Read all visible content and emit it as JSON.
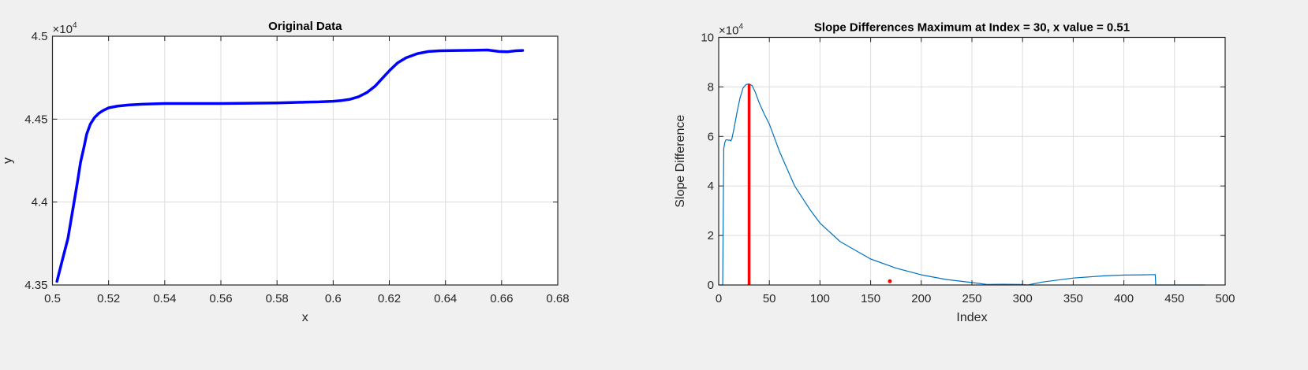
{
  "figure": {
    "background": "#f0f0f0"
  },
  "chart_data": [
    {
      "type": "line",
      "title": "Original Data",
      "xlabel": "x",
      "ylabel": "y",
      "xlim": [
        0.5,
        0.68
      ],
      "ylim": [
        4.35,
        4.5
      ],
      "y_exponent_label": "×10",
      "y_exponent": "4",
      "grid": true,
      "xticks": [
        0.5,
        0.52,
        0.54,
        0.56,
        0.58,
        0.6,
        0.62,
        0.64,
        0.66,
        0.68
      ],
      "xtick_labels": [
        "0.5",
        "0.52",
        "0.54",
        "0.56",
        "0.58",
        "0.6",
        "0.62",
        "0.64",
        "0.66",
        "0.68"
      ],
      "yticks": [
        4.35,
        4.4,
        4.45,
        4.5
      ],
      "ytick_labels": [
        "4.35",
        "4.4",
        "4.45",
        "4.5"
      ],
      "series": [
        {
          "name": "data",
          "color": "#0000ff",
          "line_width": 3.5,
          "x": [
            0.5016,
            0.5035,
            0.5055,
            0.5066,
            0.5077,
            0.509,
            0.51,
            0.5112,
            0.5122,
            0.5135,
            0.515,
            0.5165,
            0.518,
            0.52,
            0.523,
            0.527,
            0.532,
            0.54,
            0.55,
            0.56,
            0.57,
            0.58,
            0.59,
            0.595,
            0.6,
            0.603,
            0.606,
            0.609,
            0.612,
            0.615,
            0.618,
            0.6205,
            0.623,
            0.626,
            0.63,
            0.634,
            0.638,
            0.642,
            0.65,
            0.655,
            0.659,
            0.662,
            0.665,
            0.6675
          ],
          "y": [
            4.3522,
            4.365,
            4.378,
            4.389,
            4.4,
            4.413,
            4.424,
            4.433,
            4.441,
            4.447,
            4.451,
            4.4535,
            4.4552,
            4.4568,
            4.4578,
            4.4585,
            4.459,
            4.4594,
            4.4594,
            4.4594,
            4.4596,
            4.4598,
            4.4602,
            4.4604,
            4.4608,
            4.4612,
            4.462,
            4.4635,
            4.466,
            4.47,
            4.4755,
            4.48,
            4.484,
            4.487,
            4.4895,
            4.4908,
            4.4912,
            4.4913,
            4.4915,
            4.4917,
            4.4908,
            4.4906,
            4.4912,
            4.4914
          ]
        }
      ]
    },
    {
      "type": "line",
      "title": "Slope Differences Maximum at Index = 30, x value = 0.51",
      "xlabel": "Index",
      "ylabel": "Slope Difference",
      "xlim": [
        0,
        500
      ],
      "ylim": [
        0,
        10
      ],
      "y_exponent_label": "×10",
      "y_exponent": "4",
      "grid": true,
      "xticks": [
        0,
        50,
        100,
        150,
        200,
        250,
        300,
        350,
        400,
        450,
        500
      ],
      "xtick_labels": [
        "0",
        "50",
        "100",
        "150",
        "200",
        "250",
        "300",
        "350",
        "400",
        "450",
        "500"
      ],
      "yticks": [
        0,
        2,
        4,
        6,
        8,
        10
      ],
      "ytick_labels": [
        "0",
        "2",
        "4",
        "6",
        "8",
        "10"
      ],
      "series": [
        {
          "name": "slope differences",
          "color": "#0072bd",
          "line_width": 1.2,
          "x": [
            1,
            4,
            4.5,
            5,
            6,
            7,
            8,
            9,
            11,
            12,
            13,
            15,
            18,
            21,
            24,
            27,
            30,
            33,
            36,
            40,
            45,
            50,
            60,
            75,
            90,
            100,
            120,
            150,
            175,
            200,
            225,
            250,
            265,
            280,
            300,
            305,
            320,
            350,
            380,
            400,
            420,
            431,
            431.5,
            450,
            480
          ],
          "y": [
            0,
            0,
            3.0,
            5.5,
            5.75,
            5.85,
            5.87,
            5.85,
            5.85,
            5.82,
            5.9,
            6.3,
            6.95,
            7.55,
            7.95,
            8.1,
            8.12,
            8.05,
            7.8,
            7.35,
            6.9,
            6.5,
            5.4,
            4.0,
            3.05,
            2.5,
            1.75,
            1.05,
            0.68,
            0.41,
            0.22,
            0.1,
            0.02,
            0.03,
            0.02,
            0.0,
            0.12,
            0.28,
            0.37,
            0.4,
            0.41,
            0.42,
            0.0,
            0.0,
            0.0
          ]
        },
        {
          "name": "maximum marker",
          "type": "vertical-line",
          "color": "#ff0000",
          "line_width": 3.5,
          "x": 30,
          "y_from": 0,
          "y_to": 8.12
        },
        {
          "name": "point marker",
          "type": "scatter",
          "color": "#ff0000",
          "x": 169,
          "y": 0.15
        }
      ]
    }
  ]
}
